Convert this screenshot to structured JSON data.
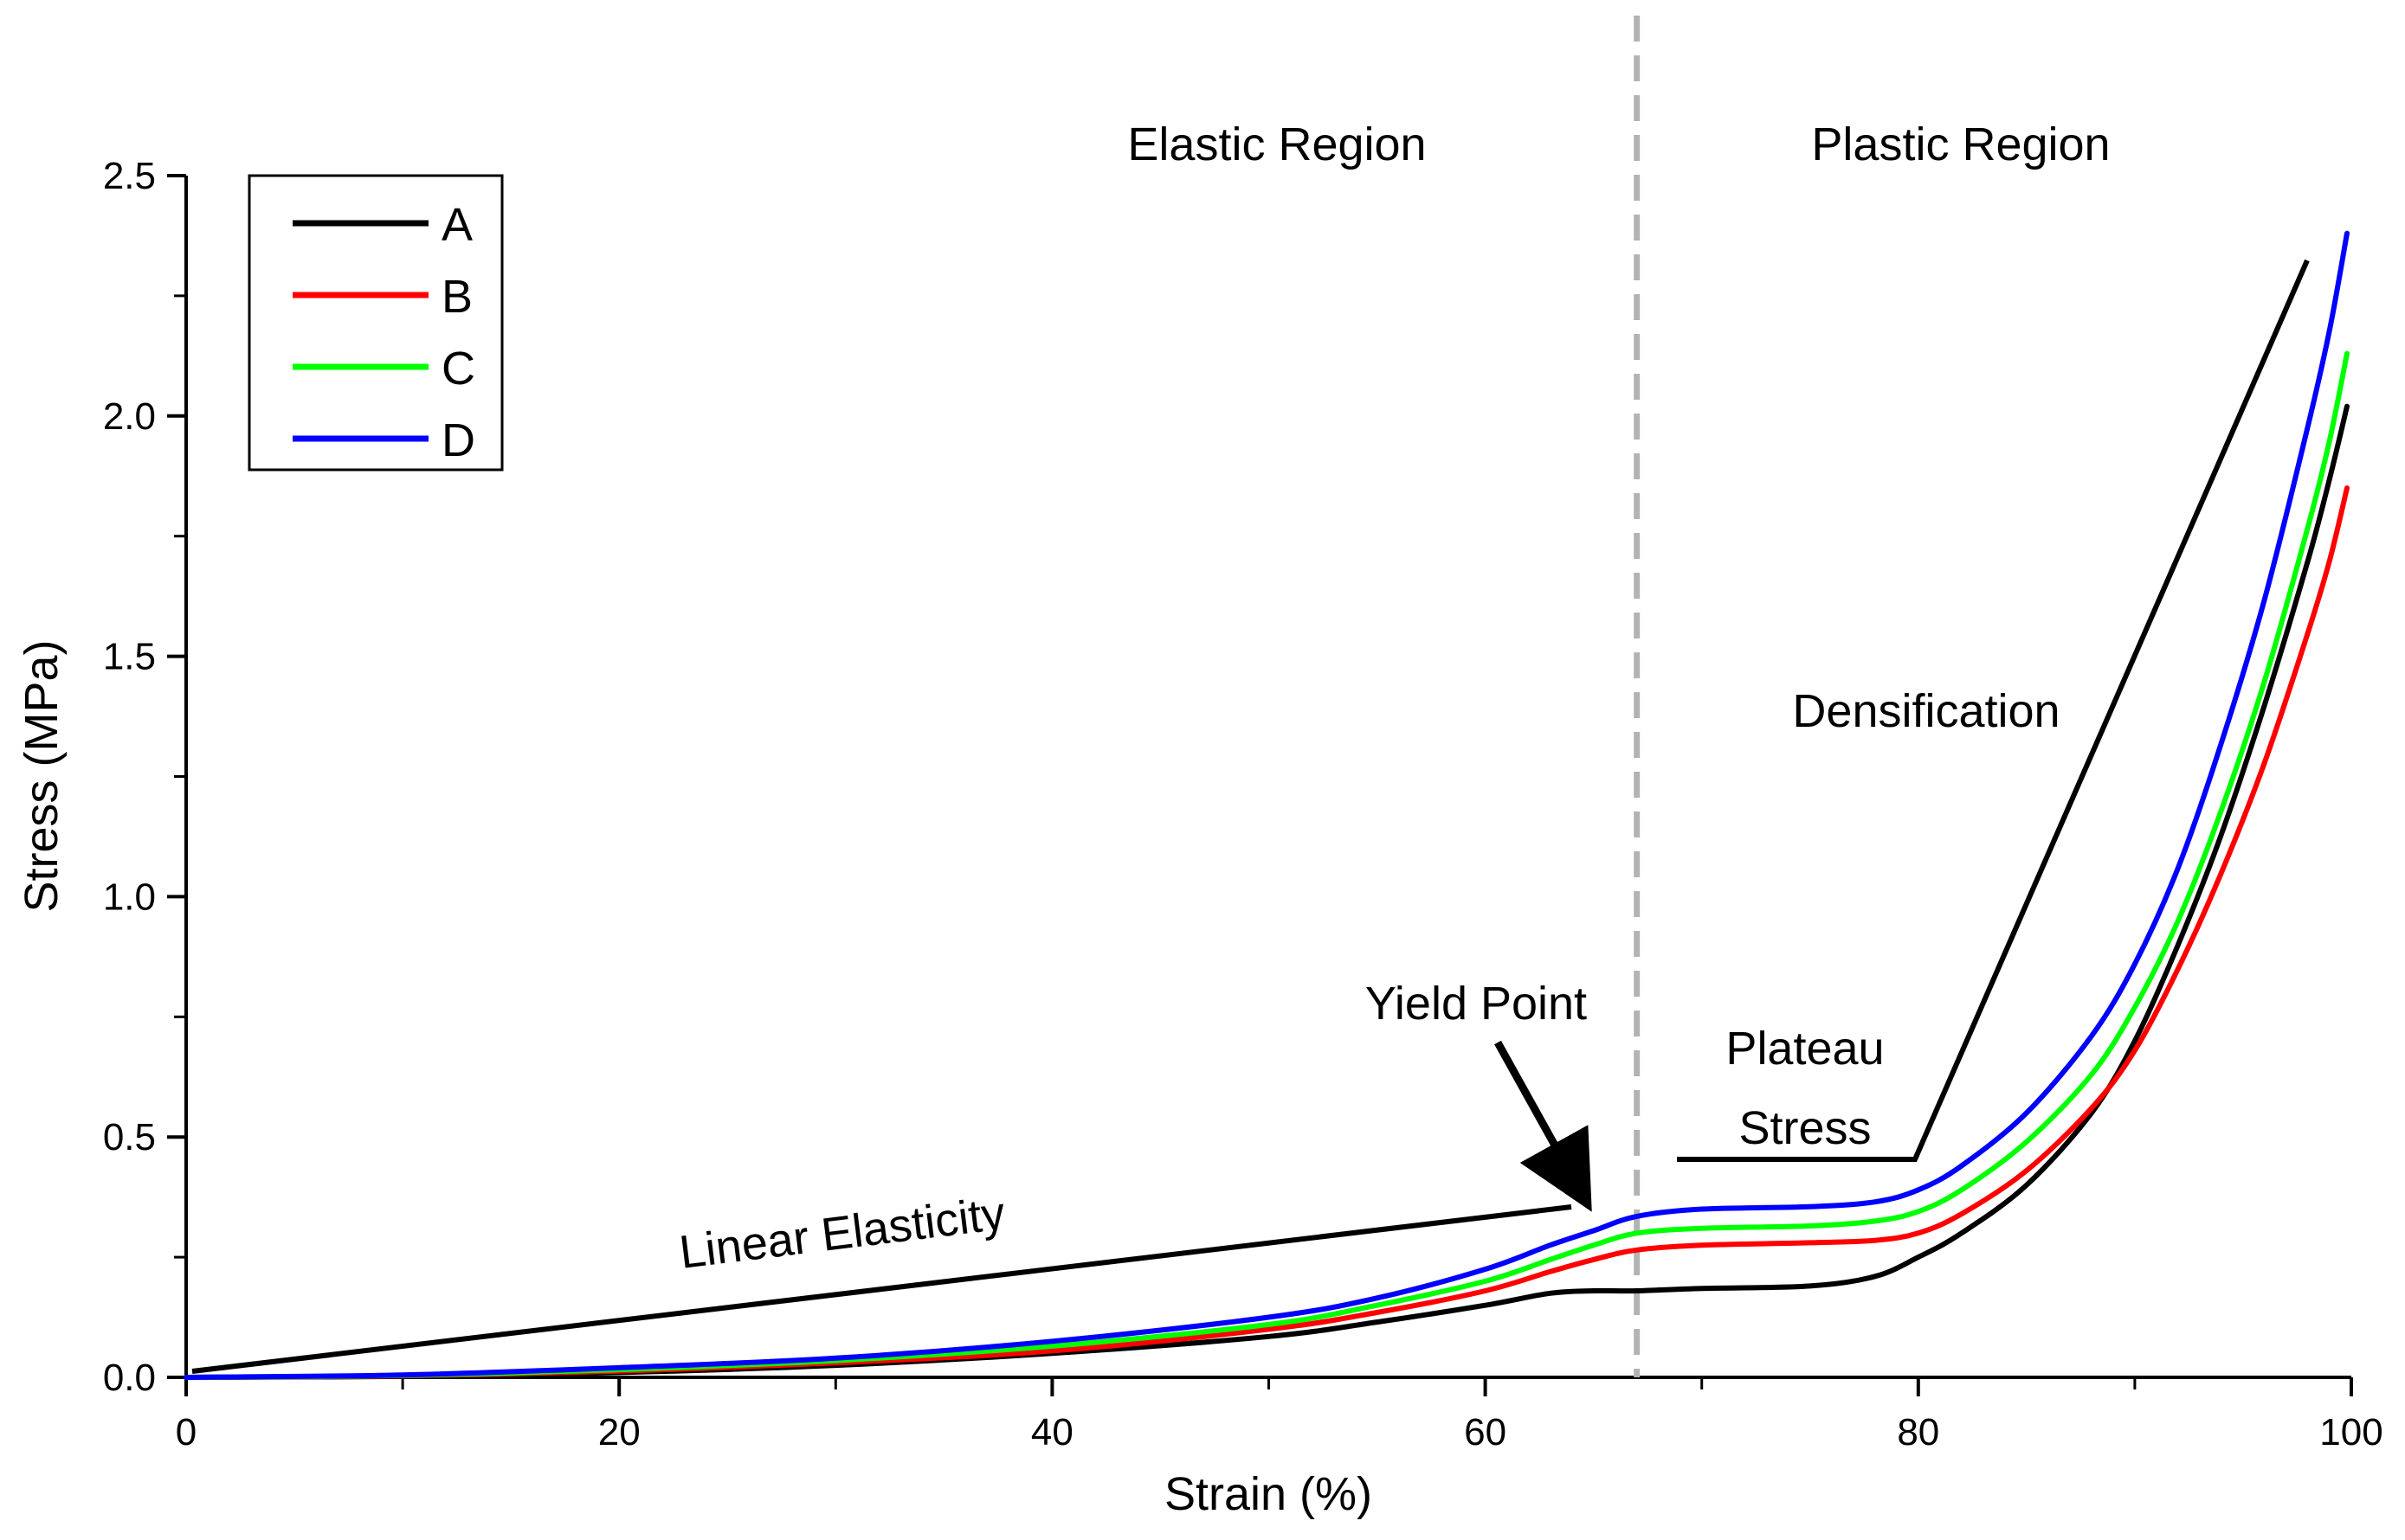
{
  "chart_data": {
    "type": "line",
    "title": "",
    "xlabel": "Strain (%)",
    "ylabel": "Stress (MPa)",
    "xlim": [
      0,
      100
    ],
    "ylim": [
      0,
      2.5
    ],
    "xticks": [
      0,
      20,
      40,
      60,
      80,
      100
    ],
    "xtick_labels": [
      "0",
      "20",
      "40",
      "60",
      "80",
      "100"
    ],
    "yticks": [
      0.0,
      0.5,
      1.0,
      1.5,
      2.0,
      2.5
    ],
    "ytick_labels": [
      "0.0",
      "0.5",
      "1.0",
      "1.5",
      "2.0",
      "2.5"
    ],
    "grid": false,
    "legend_position": "top-left",
    "x": [
      0,
      10,
      20,
      30,
      40,
      50,
      55,
      60,
      63,
      65,
      67,
      70,
      75,
      78,
      80,
      82,
      85,
      88,
      90,
      92,
      94,
      96,
      98,
      99,
      99.8
    ],
    "series": [
      {
        "name": "A",
        "color": "#000000",
        "values": [
          0,
          0.002,
          0.01,
          0.025,
          0.05,
          0.085,
          0.115,
          0.15,
          0.175,
          0.18,
          0.18,
          0.185,
          0.19,
          0.21,
          0.25,
          0.3,
          0.4,
          0.55,
          0.7,
          0.9,
          1.13,
          1.4,
          1.7,
          1.87,
          2.02
        ]
      },
      {
        "name": "B",
        "color": "#ff0000",
        "values": [
          0,
          0.003,
          0.013,
          0.03,
          0.055,
          0.1,
          0.135,
          0.18,
          0.22,
          0.245,
          0.265,
          0.275,
          0.28,
          0.285,
          0.3,
          0.34,
          0.43,
          0.56,
          0.68,
          0.85,
          1.05,
          1.28,
          1.55,
          1.7,
          1.85
        ]
      },
      {
        "name": "C",
        "color": "#00ff00",
        "values": [
          0,
          0.004,
          0.016,
          0.035,
          0.065,
          0.11,
          0.15,
          0.2,
          0.245,
          0.275,
          0.3,
          0.31,
          0.315,
          0.325,
          0.345,
          0.39,
          0.49,
          0.63,
          0.77,
          0.95,
          1.18,
          1.45,
          1.77,
          1.95,
          2.13
        ]
      },
      {
        "name": "D",
        "color": "#0000ff",
        "values": [
          0,
          0.005,
          0.02,
          0.04,
          0.075,
          0.125,
          0.165,
          0.225,
          0.275,
          0.305,
          0.335,
          0.35,
          0.355,
          0.365,
          0.39,
          0.44,
          0.55,
          0.71,
          0.86,
          1.06,
          1.32,
          1.62,
          1.98,
          2.18,
          2.38
        ]
      }
    ],
    "annotations": {
      "elastic_region": "Elastic Region",
      "plastic_region": "Plastic Region",
      "linear_elasticity": "Linear Elasticity",
      "yield_point": "Yield Point",
      "plateau_line1": "Plateau",
      "plateau_line2": "Stress",
      "densification": "Densification"
    },
    "divider_x": 67
  }
}
